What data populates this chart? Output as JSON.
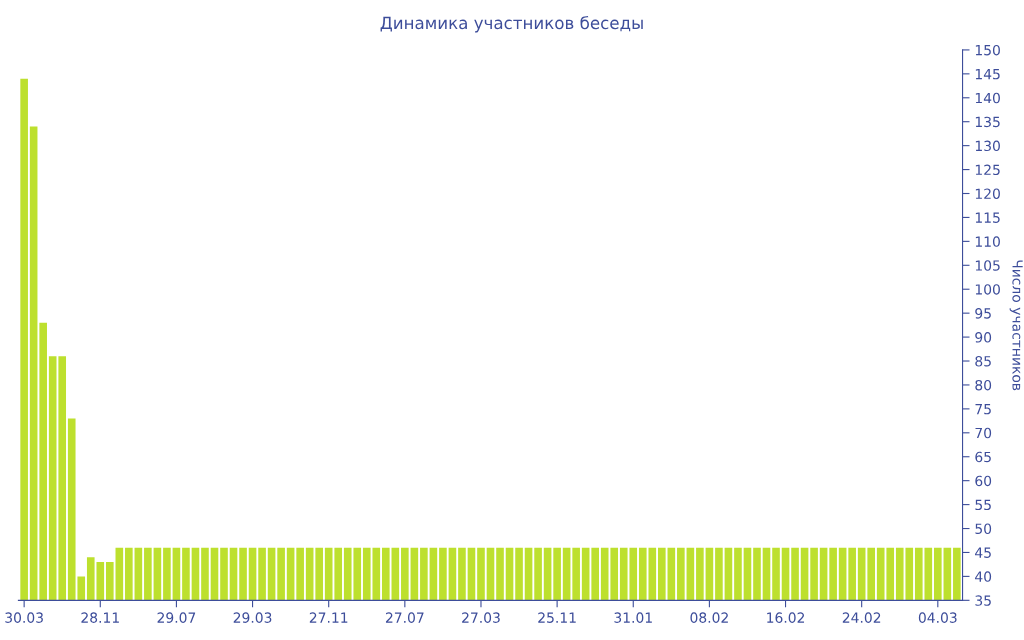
{
  "chart_data": {
    "type": "bar",
    "title": "Динамика участников беседы",
    "ylabel": "Число участников",
    "categories": [
      "30.03",
      null,
      null,
      null,
      null,
      null,
      null,
      null,
      "28.11",
      null,
      null,
      null,
      null,
      null,
      null,
      null,
      "29.07",
      null,
      null,
      null,
      null,
      null,
      null,
      null,
      "29.03",
      null,
      null,
      null,
      null,
      null,
      null,
      null,
      "27.11",
      null,
      null,
      null,
      null,
      null,
      null,
      null,
      "27.07",
      null,
      null,
      null,
      null,
      null,
      null,
      null,
      "27.03",
      null,
      null,
      null,
      null,
      null,
      null,
      null,
      "25.11",
      null,
      null,
      null,
      null,
      null,
      null,
      null,
      "31.01",
      null,
      null,
      null,
      null,
      null,
      null,
      null,
      "08.02",
      null,
      null,
      null,
      null,
      null,
      null,
      null,
      "16.02",
      null,
      null,
      null,
      null,
      null,
      null,
      null,
      "24.02",
      null,
      null,
      null,
      null,
      null,
      null,
      null,
      "04.03",
      null,
      null
    ],
    "series": [
      {
        "color": "#bde02e",
        "values": [
          144,
          134,
          93,
          86,
          86,
          73,
          40,
          44,
          43,
          43,
          46,
          46,
          46,
          46,
          46,
          46,
          46,
          46,
          46,
          46,
          46,
          46,
          46,
          46,
          46,
          46,
          46,
          46,
          46,
          46,
          46,
          46,
          46,
          46,
          46,
          46,
          46,
          46,
          46,
          46,
          46,
          46,
          46,
          46,
          46,
          46,
          46,
          46,
          46,
          46,
          46,
          46,
          46,
          46,
          46,
          46,
          46,
          46,
          46,
          46,
          46,
          46,
          46,
          46,
          46,
          46,
          46,
          46,
          46,
          46,
          46,
          46,
          46,
          46,
          46,
          46,
          46,
          46,
          46,
          46,
          46,
          46,
          46,
          46,
          46,
          46,
          46,
          46,
          46,
          46,
          46,
          46,
          46,
          46,
          46,
          46,
          46,
          46,
          46
        ]
      }
    ],
    "ylim": [
      35,
      150
    ],
    "yticks": [
      35,
      40,
      45,
      50,
      55,
      60,
      65,
      70,
      75,
      80,
      85,
      90,
      95,
      100,
      105,
      110,
      115,
      120,
      125,
      130,
      135,
      140,
      145,
      150
    ],
    "grid": false,
    "legend": false
  }
}
